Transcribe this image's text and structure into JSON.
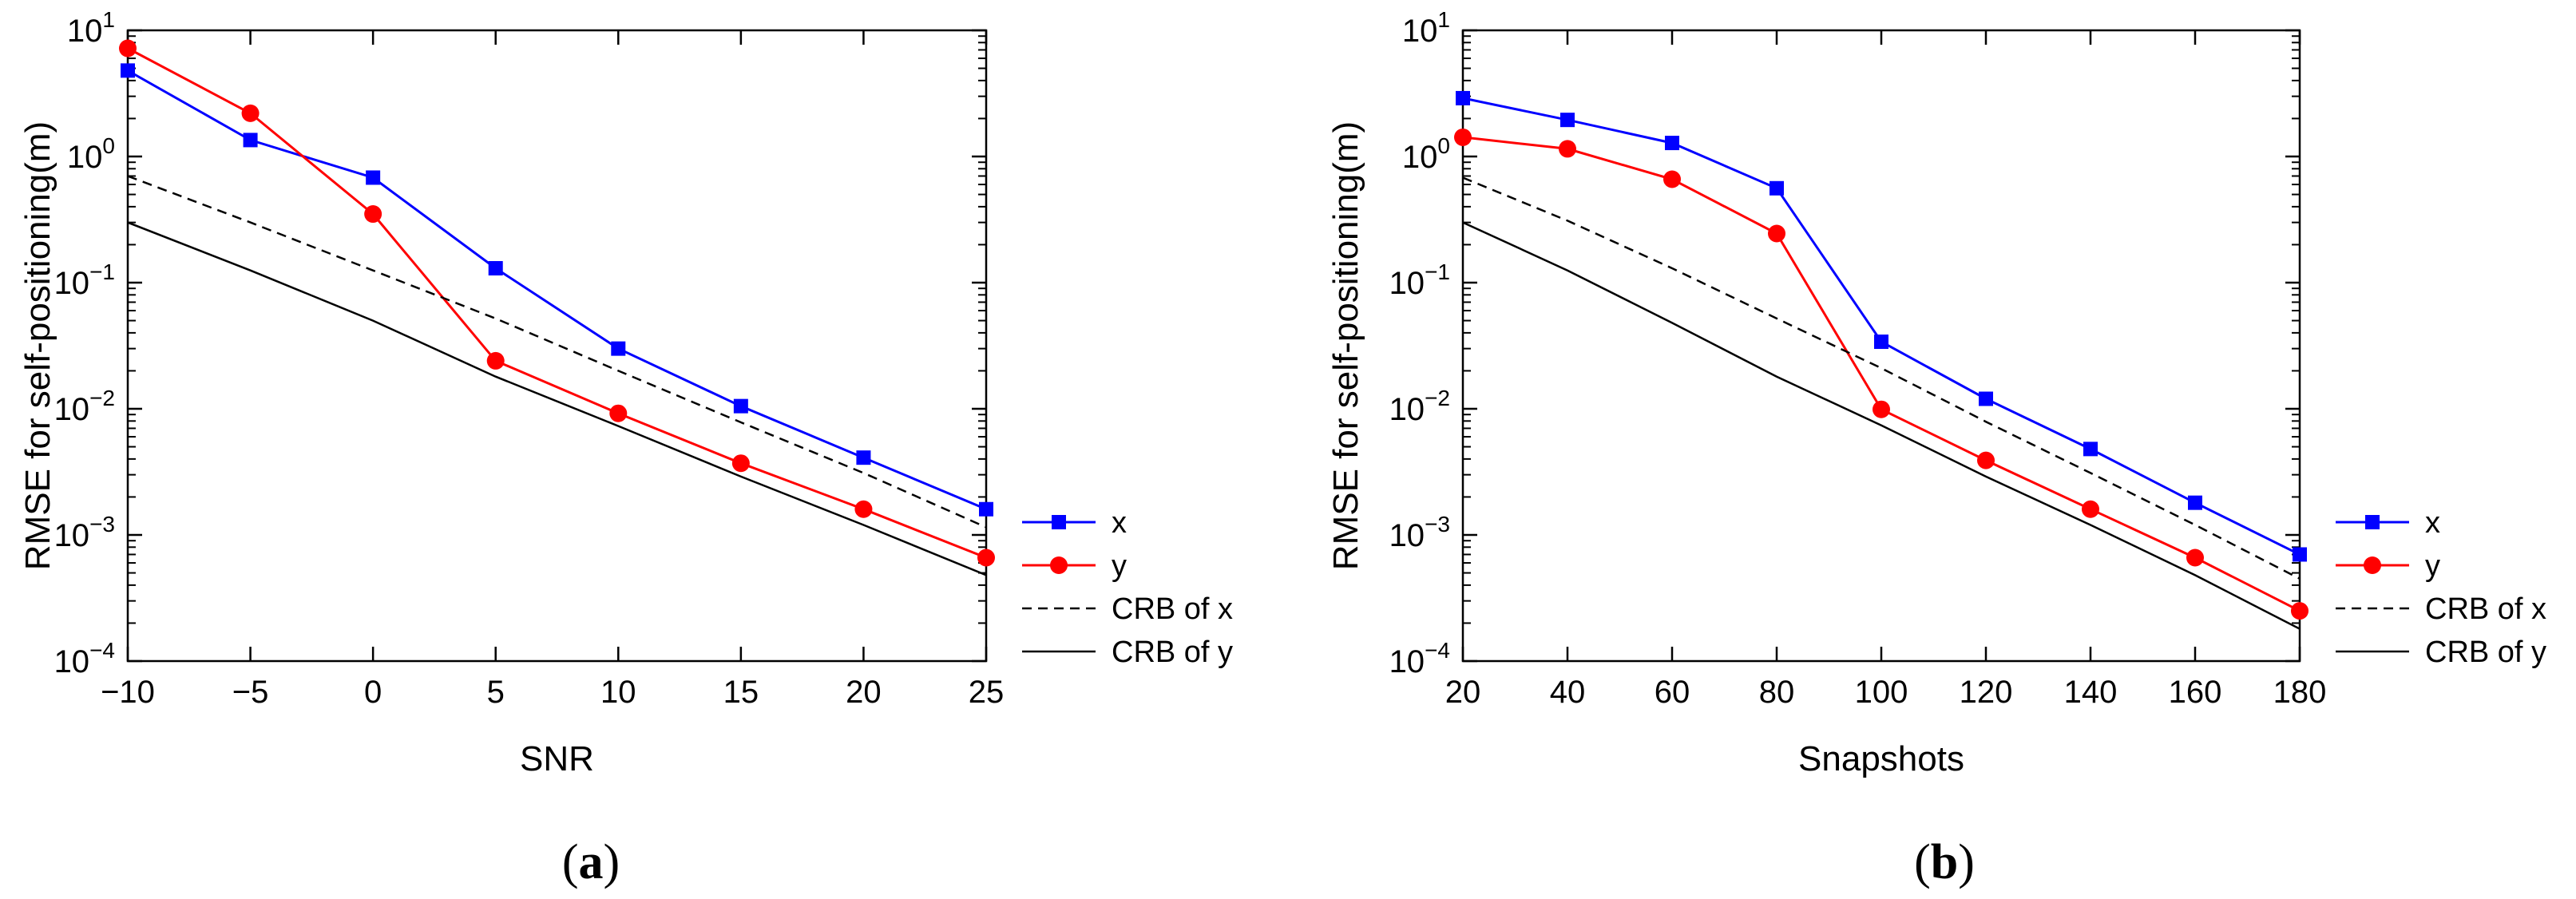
{
  "chart_data": [
    {
      "type": "line",
      "panel_label": "(a)",
      "xlabel": "SNR",
      "ylabel": "RMSE for self-positioning(m)",
      "yscale": "log",
      "xlim": [
        -10,
        25
      ],
      "ylim": [
        0.0001,
        10
      ],
      "xticks": [
        -10,
        -5,
        0,
        5,
        10,
        15,
        20,
        25
      ],
      "xtick_labels": [
        "−10",
        "−5",
        "0",
        "5",
        "10",
        "15",
        "20",
        "25"
      ],
      "yticks": [
        {
          "value": 0.0001,
          "base": "10",
          "exp": "−4"
        },
        {
          "value": 0.001,
          "base": "10",
          "exp": "−3"
        },
        {
          "value": 0.01,
          "base": "10",
          "exp": "−2"
        },
        {
          "value": 0.1,
          "base": "10",
          "exp": "−1"
        },
        {
          "value": 1,
          "base": "10",
          "exp": "0"
        },
        {
          "value": 10,
          "base": "10",
          "exp": "1"
        }
      ],
      "x": [
        -10,
        -5,
        0,
        5,
        10,
        15,
        20,
        25
      ],
      "legend_position": "outside-right",
      "series": [
        {
          "name": "x",
          "color": "#0000ff",
          "marker": "square",
          "dash": "solid",
          "values": [
            4.8,
            1.35,
            0.68,
            0.13,
            0.03,
            0.0105,
            0.0041,
            0.0016
          ]
        },
        {
          "name": "y",
          "color": "#ff0000",
          "marker": "circle",
          "dash": "solid",
          "values": [
            7.2,
            2.2,
            0.35,
            0.024,
            0.0092,
            0.0037,
            0.0016,
            0.00066
          ]
        },
        {
          "name": "CRB of x",
          "color": "#000000",
          "marker": "none",
          "dash": "dashed",
          "values": [
            0.7,
            0.3,
            0.125,
            0.052,
            0.02,
            0.0078,
            0.0031,
            0.00115
          ]
        },
        {
          "name": "CRB of y",
          "color": "#000000",
          "marker": "none",
          "dash": "solid",
          "values": [
            0.3,
            0.125,
            0.05,
            0.018,
            0.0073,
            0.0029,
            0.0012,
            0.00048
          ]
        }
      ]
    },
    {
      "type": "line",
      "panel_label": "(b)",
      "xlabel": "Snapshots",
      "ylabel": "RMSE for self-positioning(m)",
      "yscale": "log",
      "xlim": [
        20,
        180
      ],
      "ylim": [
        0.0001,
        10
      ],
      "xticks": [
        20,
        40,
        60,
        80,
        100,
        120,
        140,
        160,
        180
      ],
      "xtick_labels": [
        "20",
        "40",
        "60",
        "80",
        "100",
        "120",
        "140",
        "160",
        "180"
      ],
      "yticks": [
        {
          "value": 0.0001,
          "base": "10",
          "exp": "−4"
        },
        {
          "value": 0.001,
          "base": "10",
          "exp": "−3"
        },
        {
          "value": 0.01,
          "base": "10",
          "exp": "−2"
        },
        {
          "value": 0.1,
          "base": "10",
          "exp": "−1"
        },
        {
          "value": 1,
          "base": "10",
          "exp": "0"
        },
        {
          "value": 10,
          "base": "10",
          "exp": "1"
        }
      ],
      "x": [
        20,
        40,
        60,
        80,
        100,
        120,
        140,
        160,
        180
      ],
      "legend_position": "outside-right",
      "series": [
        {
          "name": "x",
          "color": "#0000ff",
          "marker": "square",
          "dash": "solid",
          "values": [
            2.9,
            1.95,
            1.28,
            0.56,
            0.034,
            0.012,
            0.0048,
            0.0018,
            0.0007
          ]
        },
        {
          "name": "y",
          "color": "#ff0000",
          "marker": "circle",
          "dash": "solid",
          "values": [
            1.42,
            1.15,
            0.66,
            0.245,
            0.0099,
            0.0039,
            0.0016,
            0.00066,
            0.00025
          ]
        },
        {
          "name": "CRB of x",
          "color": "#000000",
          "marker": "none",
          "dash": "dashed",
          "values": [
            0.68,
            0.31,
            0.13,
            0.052,
            0.021,
            0.0079,
            0.0031,
            0.0012,
            0.00045
          ]
        },
        {
          "name": "CRB of y",
          "color": "#000000",
          "marker": "none",
          "dash": "solid",
          "values": [
            0.3,
            0.125,
            0.048,
            0.018,
            0.0074,
            0.0029,
            0.0012,
            0.00048,
            0.00018
          ]
        }
      ]
    }
  ]
}
